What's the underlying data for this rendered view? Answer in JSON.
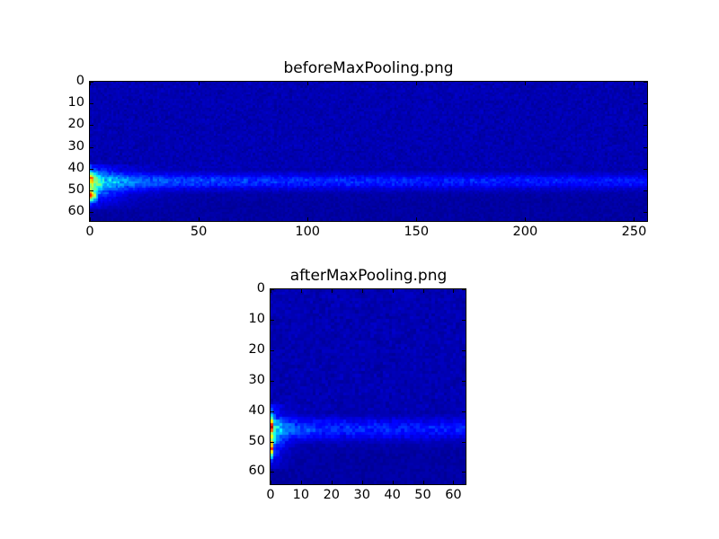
{
  "chart_data": [
    {
      "type": "heatmap",
      "title": "beforeMaxPooling.png",
      "colormap": "jet",
      "shape": [
        64,
        256
      ],
      "xlim": [
        0,
        256
      ],
      "ylim": [
        64,
        0
      ],
      "xticks": [
        0,
        50,
        100,
        150,
        200,
        250
      ],
      "yticks": [
        0,
        10,
        20,
        30,
        40,
        50,
        60
      ],
      "grid": false
    },
    {
      "type": "heatmap",
      "title": "afterMaxPooling.png",
      "colormap": "jet",
      "shape": [
        64,
        64
      ],
      "xlim": [
        0,
        64
      ],
      "ylim": [
        64,
        0
      ],
      "xticks": [
        0,
        10,
        20,
        30,
        40,
        50,
        60
      ],
      "yticks": [
        0,
        10,
        20,
        30,
        40,
        50,
        60
      ],
      "grid": false
    }
  ]
}
